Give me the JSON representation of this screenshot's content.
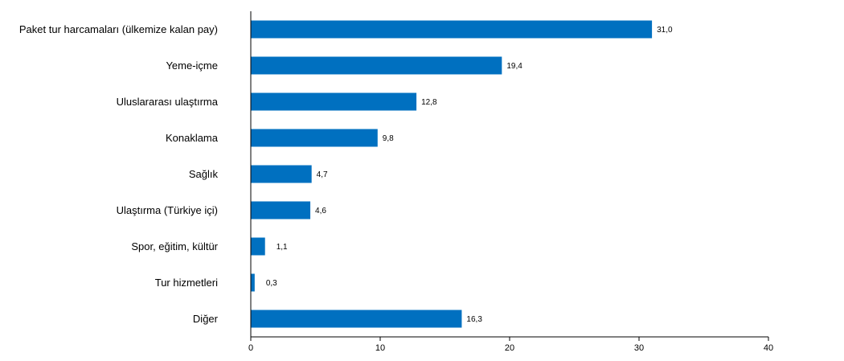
{
  "chart_data": {
    "type": "bar",
    "orientation": "horizontal",
    "categories": [
      "Paket tur harcamaları (ülkemize kalan pay)",
      "Yeme-içme",
      "Uluslararası ulaştırma",
      "Konaklama",
      "Sağlık",
      "Ulaştırma (Türkiye içi)",
      "Spor, eğitim, kültür",
      "Tur hizmetleri",
      "Diğer"
    ],
    "values": [
      31.0,
      19.4,
      12.8,
      9.8,
      4.7,
      4.6,
      1.1,
      0.3,
      16.3
    ],
    "value_labels": [
      "31,0",
      "19,4",
      "12,8",
      "9,8",
      "4,7",
      "4,6",
      "1,1",
      "0,3",
      "16,3"
    ],
    "xlim": [
      0,
      40
    ],
    "xticks": [
      0,
      10,
      20,
      30,
      40
    ],
    "xtick_labels": [
      "0",
      "10",
      "20",
      "30",
      "40"
    ],
    "title": "",
    "xlabel": "",
    "ylabel": "",
    "grid": false,
    "legend": "none",
    "bar_color": "#0070C0"
  }
}
